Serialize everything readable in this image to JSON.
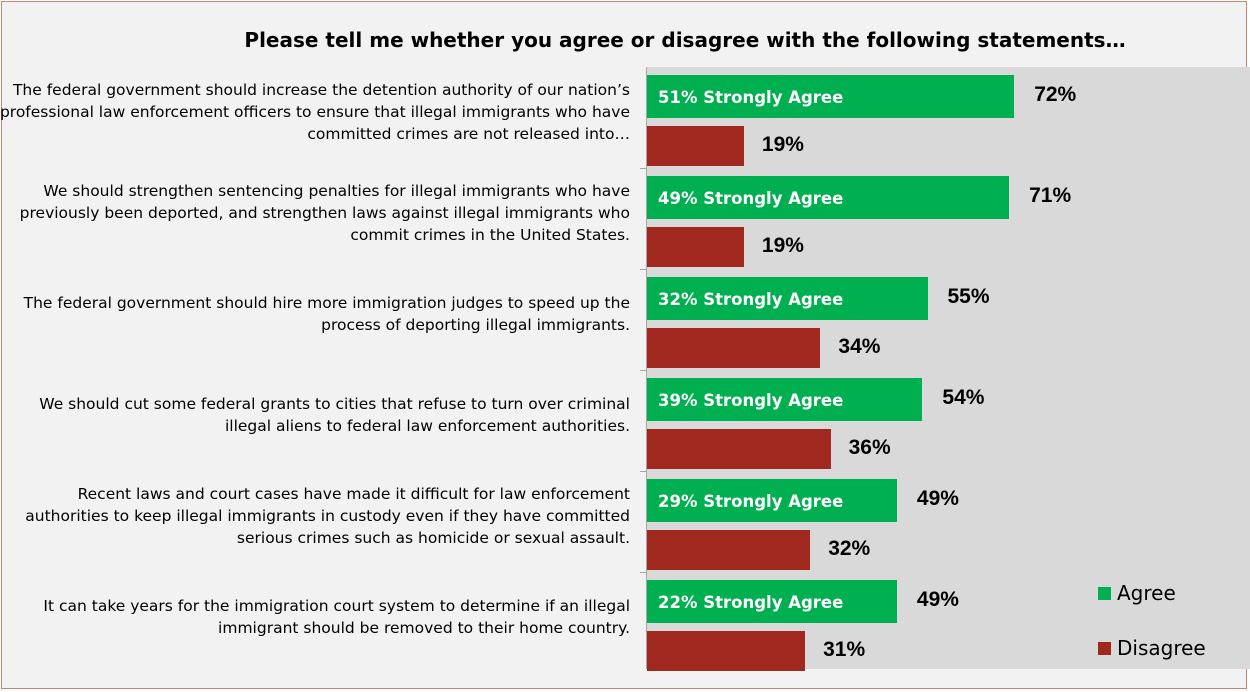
{
  "chart_data": {
    "type": "bar",
    "orientation": "horizontal",
    "title": "Please tell me whether you agree or disagree with the following statements…",
    "categories": [
      "The federal government should increase the detention authority of our nation’s professional law enforcement officers to ensure that illegal immigrants who have committed crimes are not released into…",
      "We should strengthen sentencing penalties for illegal immigrants who have previously been deported, and strengthen laws against illegal immigrants who commit crimes in the United States.",
      "The federal government should hire more immigration judges to speed up the process of deporting illegal immigrants.",
      "We should cut some federal grants to cities that refuse to turn over criminal illegal aliens to federal law enforcement authorities.",
      "Recent laws and court cases have made it difficult for law enforcement authorities to keep illegal immigrants in custody even if they have committed serious crimes such as homicide or sexual assault.",
      "It can take years for the immigration court system to determine if an illegal immigrant should be removed to their home country."
    ],
    "series": [
      {
        "name": "Agree",
        "color": "#00b050",
        "values": [
          72,
          71,
          55,
          54,
          49,
          49
        ],
        "labels": [
          "72%",
          "71%",
          "55%",
          "54%",
          "49%",
          "49%"
        ],
        "inner_labels": [
          "51% Strongly Agree",
          "49% Strongly Agree",
          "32% Strongly Agree",
          "39% Strongly Agree",
          "29% Strongly Agree",
          "22% Strongly Agree"
        ]
      },
      {
        "name": "Disagree",
        "color": "#a0281e",
        "values": [
          19,
          19,
          34,
          36,
          32,
          31
        ],
        "labels": [
          "19%",
          "19%",
          "34%",
          "36%",
          "32%",
          "31%"
        ]
      }
    ],
    "xlim": [
      0,
      100
    ],
    "legend": "bottom-right",
    "grid": false
  }
}
